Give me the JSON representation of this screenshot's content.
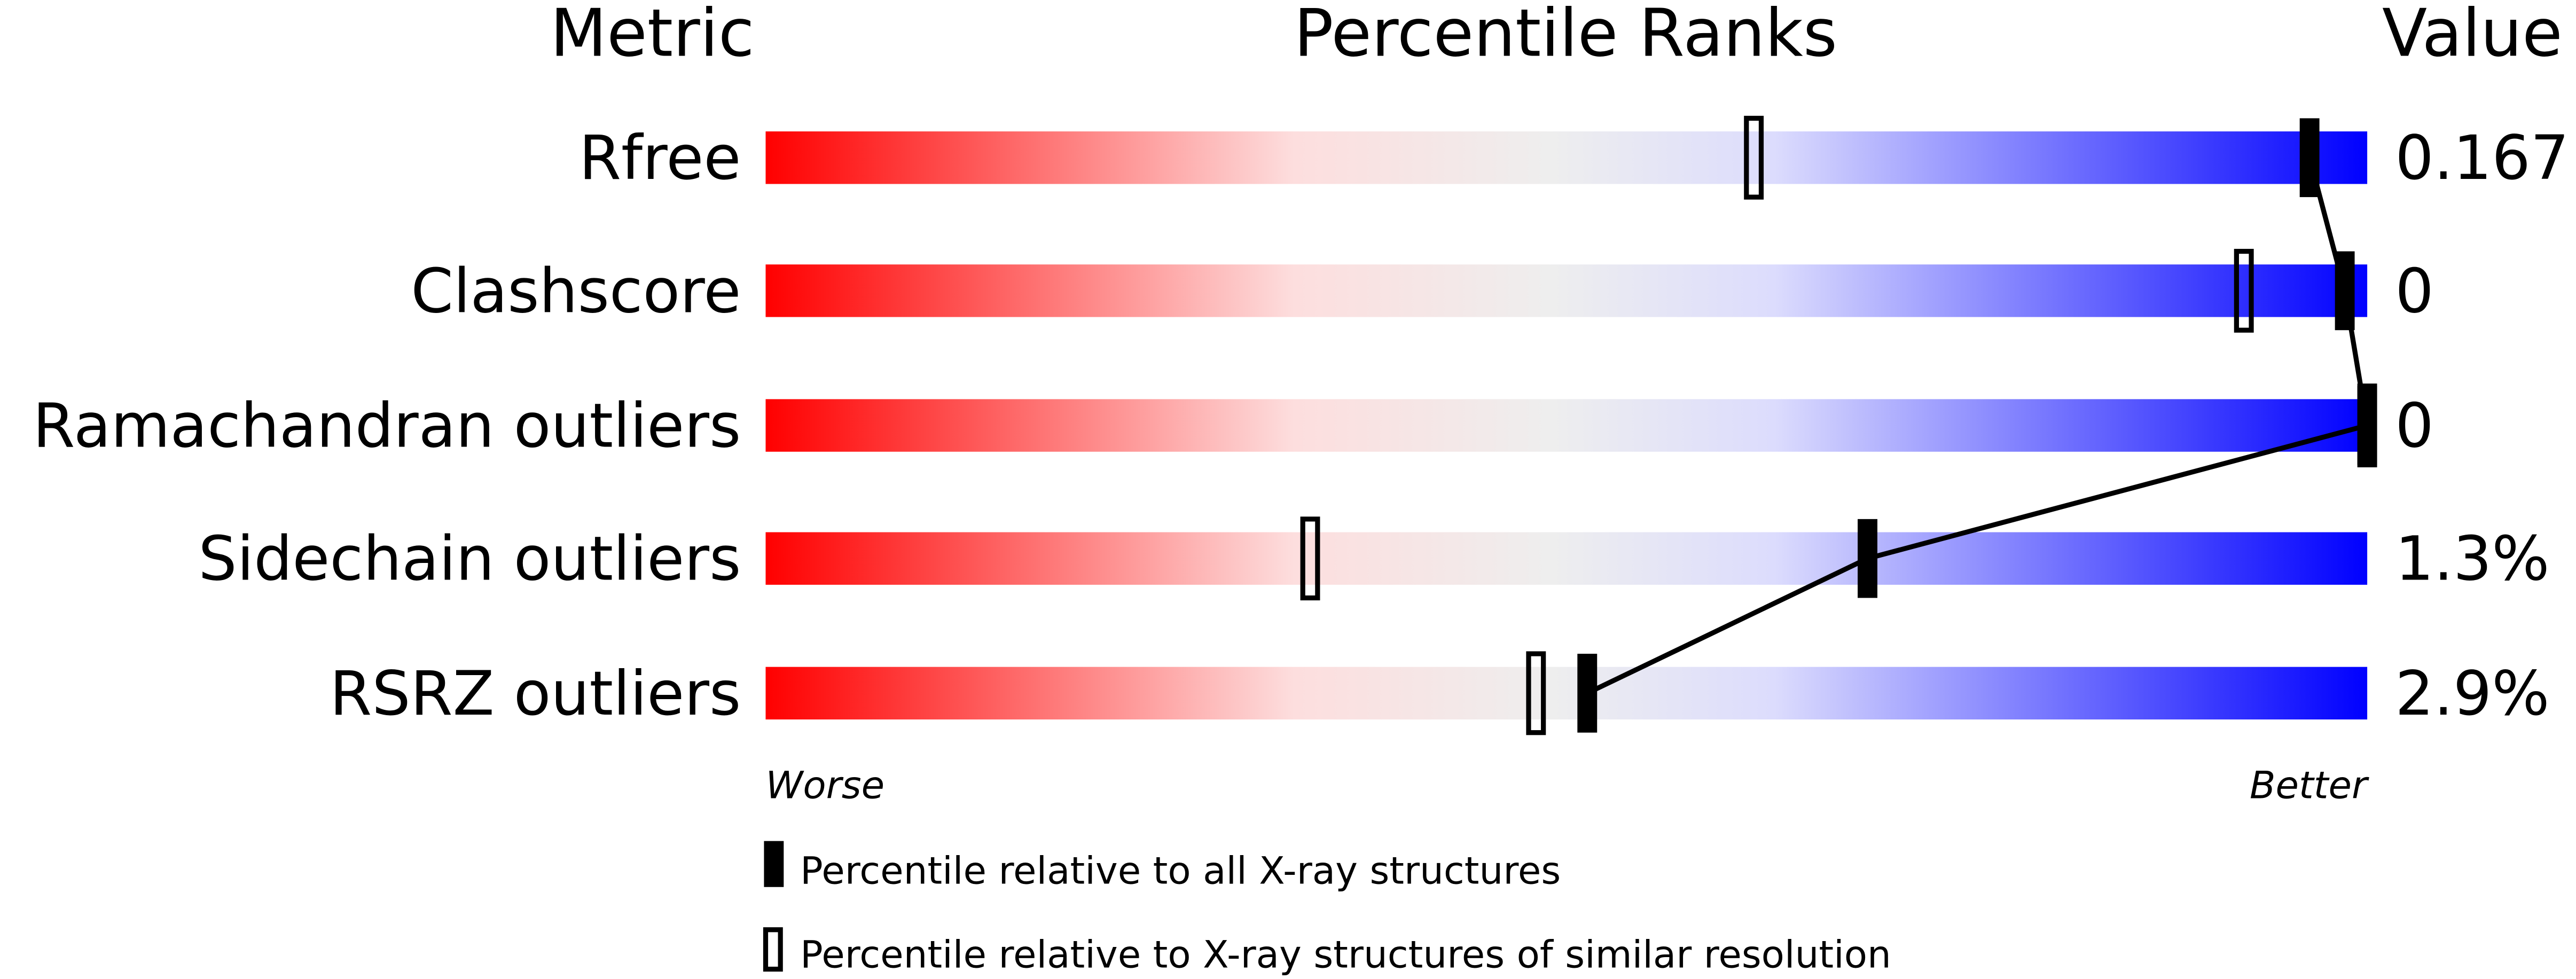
{
  "chart_data": {
    "type": "bar",
    "headers": {
      "metric": "Metric",
      "ranks": "Percentile Ranks",
      "value": "Value"
    },
    "xlim": [
      0,
      100
    ],
    "axis_labels": {
      "left": "Worse",
      "right": "Better"
    },
    "categories": [
      "Rfree",
      "Clashscore",
      "Ramachandran outliers",
      "Sidechain outliers",
      "RSRZ outliers"
    ],
    "values": [
      "0.167",
      "0",
      "0",
      "1.3%",
      "2.9%"
    ],
    "series": [
      {
        "name": "Percentile relative to all X-ray structures",
        "style": "filled",
        "values": [
          96.4,
          98.6,
          100,
          68.8,
          51.3
        ]
      },
      {
        "name": "Percentile relative to X-ray structures of similar resolution",
        "style": "open",
        "values": [
          61.7,
          92.3,
          100,
          34.0,
          48.1
        ]
      }
    ],
    "gradient_colors": [
      "#ff0000",
      "#fddede",
      "#eeeeee",
      "#dcdcfd",
      "#0000ff"
    ],
    "grid": false,
    "legend_position": "bottom"
  }
}
